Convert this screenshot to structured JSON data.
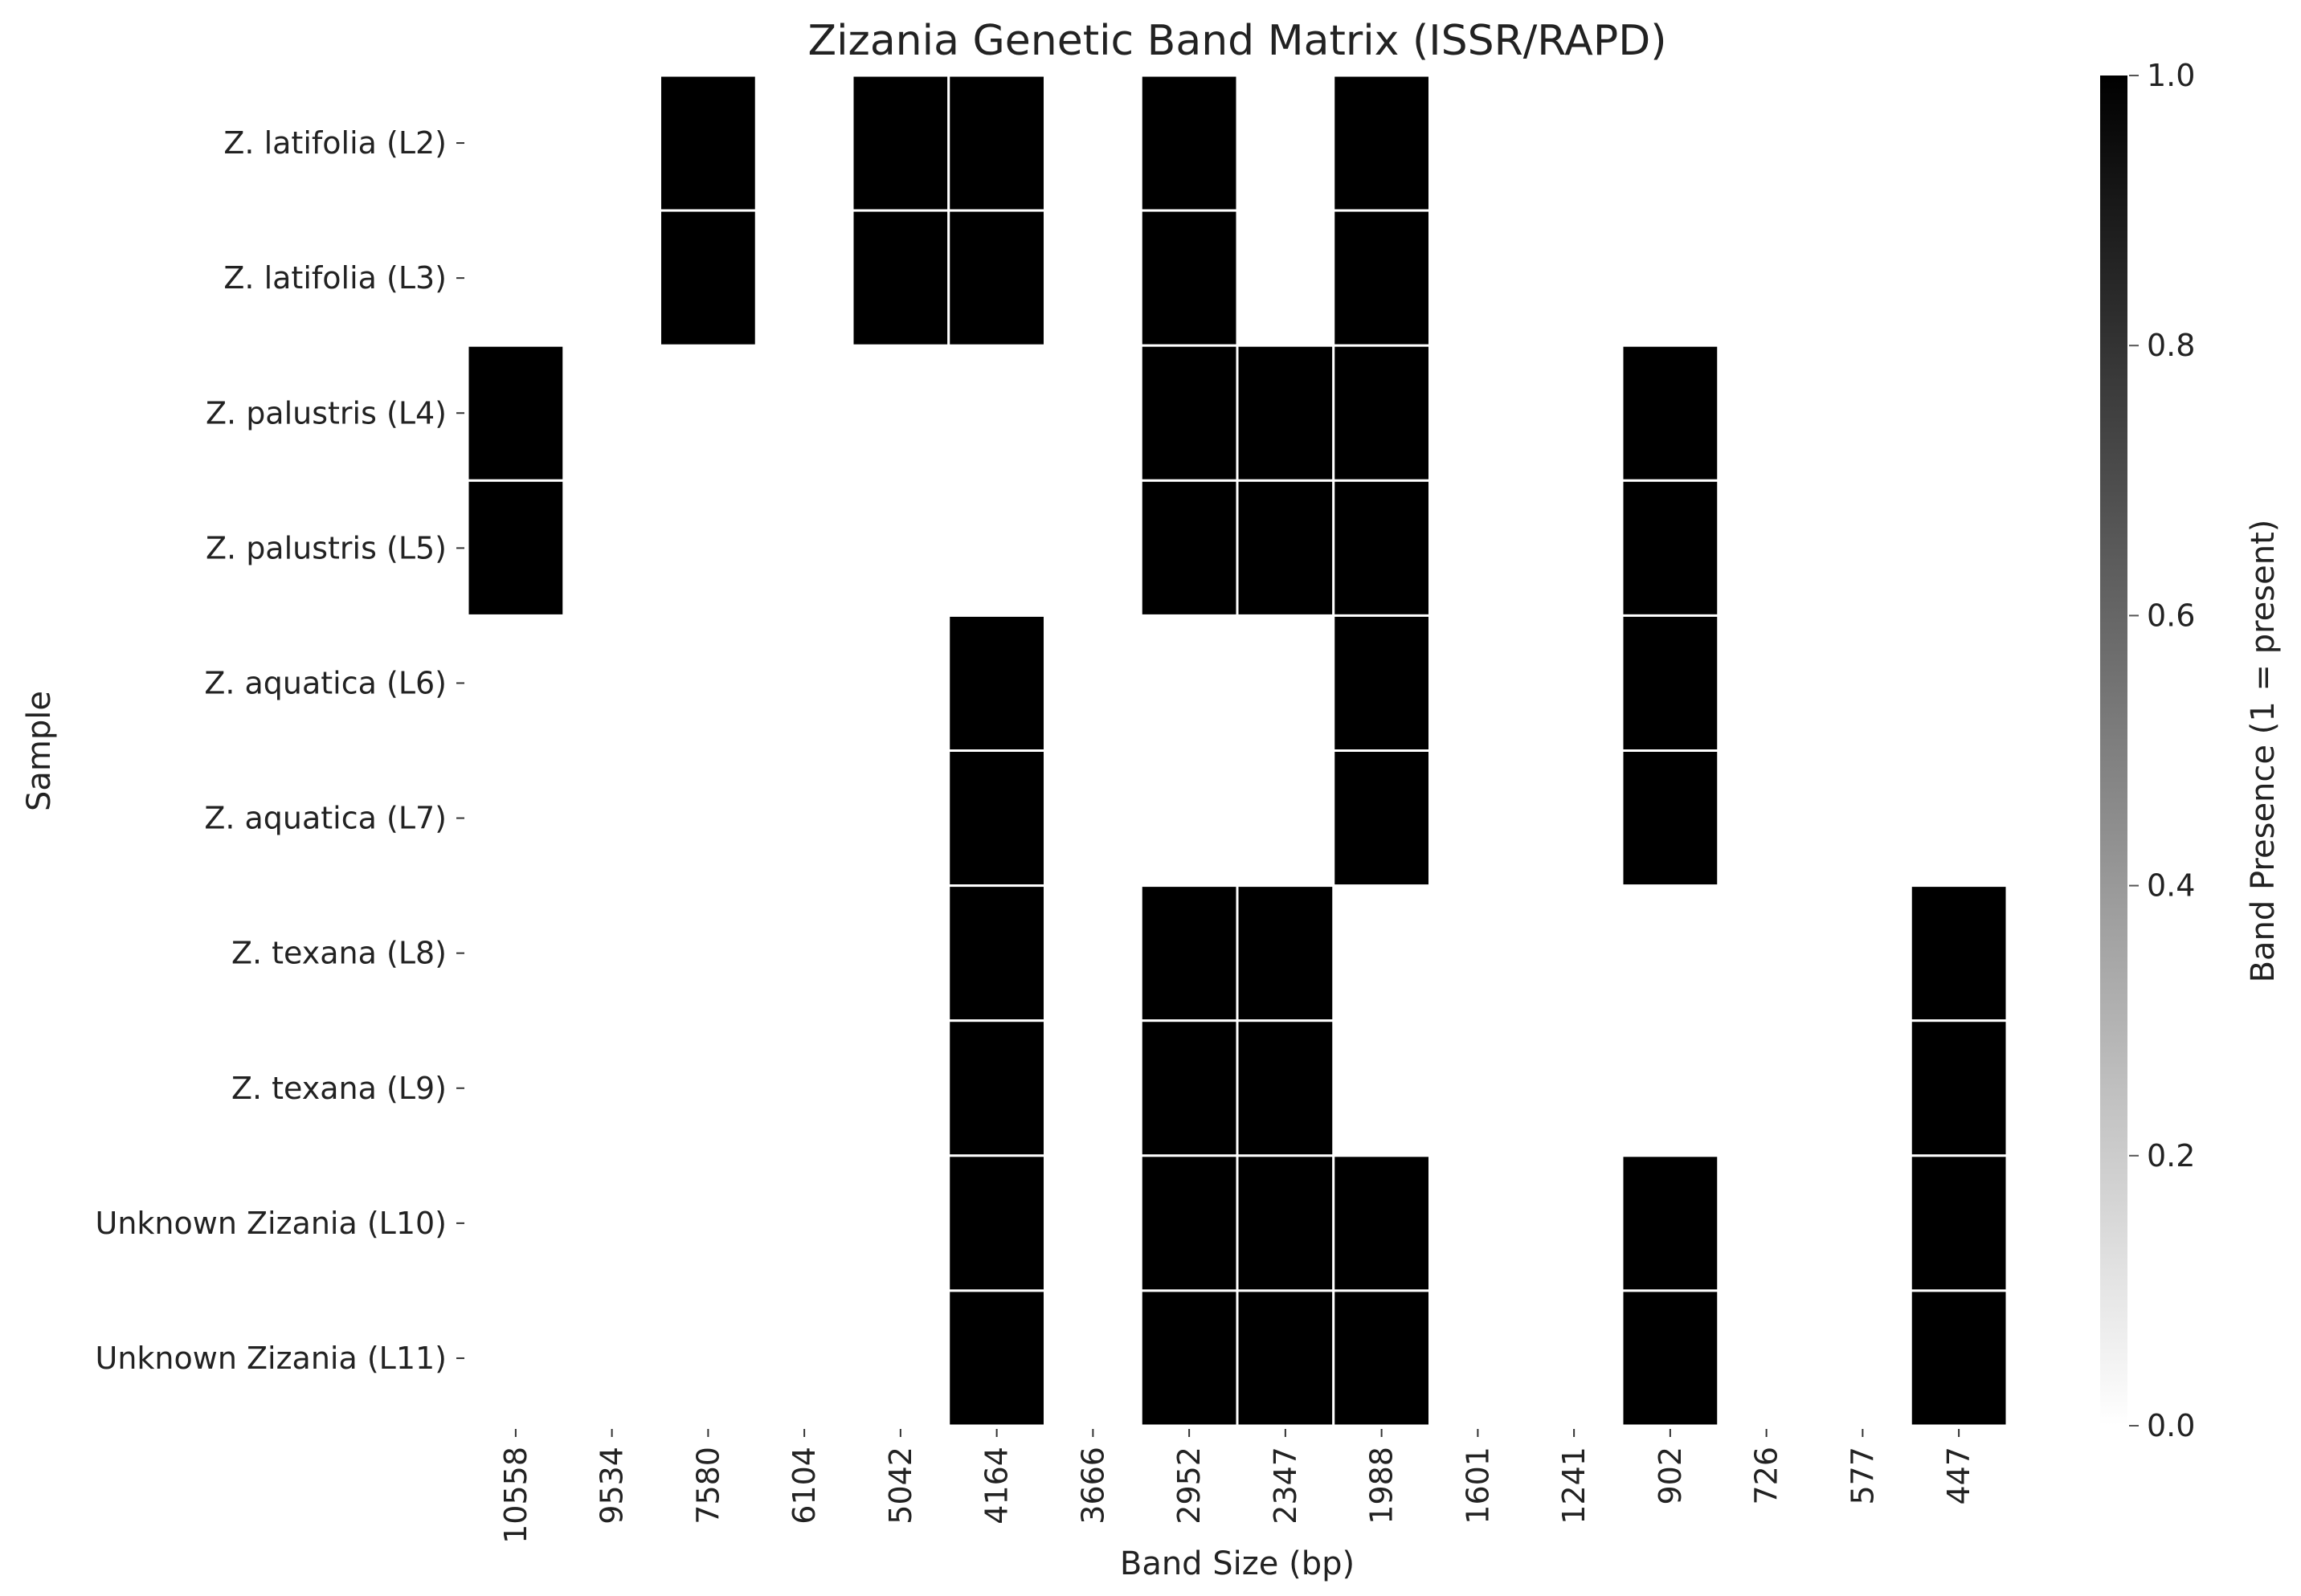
{
  "chart_data": {
    "type": "heatmap",
    "title": "Zizania Genetic Band Matrix (ISSR/RAPD)",
    "xlabel": "Band Size (bp)",
    "ylabel": "Sample",
    "x_categories": [
      "10558",
      "9534",
      "7580",
      "6104",
      "5042",
      "4164",
      "3666",
      "2952",
      "2347",
      "1988",
      "1601",
      "1241",
      "902",
      "726",
      "577",
      "447"
    ],
    "y_categories": [
      "Z. latifolia (L2)",
      "Z. latifolia (L3)",
      "Z. palustris (L4)",
      "Z. palustris (L5)",
      "Z. aquatica (L6)",
      "Z. aquatica (L7)",
      "Z. texana (L8)",
      "Z. texana (L9)",
      "Unknown Zizania (L10)",
      "Unknown Zizania (L11)"
    ],
    "values": [
      [
        0,
        0,
        1,
        0,
        1,
        1,
        0,
        1,
        0,
        1,
        0,
        0,
        0,
        0,
        0,
        0
      ],
      [
        0,
        0,
        1,
        0,
        1,
        1,
        0,
        1,
        0,
        1,
        0,
        0,
        0,
        0,
        0,
        0
      ],
      [
        1,
        0,
        0,
        0,
        0,
        0,
        0,
        1,
        1,
        1,
        0,
        0,
        1,
        0,
        0,
        0
      ],
      [
        1,
        0,
        0,
        0,
        0,
        0,
        0,
        1,
        1,
        1,
        0,
        0,
        1,
        0,
        0,
        0
      ],
      [
        0,
        0,
        0,
        0,
        0,
        1,
        0,
        0,
        0,
        1,
        0,
        0,
        1,
        0,
        0,
        0
      ],
      [
        0,
        0,
        0,
        0,
        0,
        1,
        0,
        0,
        0,
        1,
        0,
        0,
        1,
        0,
        0,
        0
      ],
      [
        0,
        0,
        0,
        0,
        0,
        1,
        0,
        1,
        1,
        0,
        0,
        0,
        0,
        0,
        0,
        1
      ],
      [
        0,
        0,
        0,
        0,
        0,
        1,
        0,
        1,
        1,
        0,
        0,
        0,
        0,
        0,
        0,
        1
      ],
      [
        0,
        0,
        0,
        0,
        0,
        1,
        0,
        1,
        1,
        1,
        0,
        0,
        1,
        0,
        0,
        1
      ],
      [
        0,
        0,
        0,
        0,
        0,
        1,
        0,
        1,
        1,
        1,
        0,
        0,
        1,
        0,
        0,
        1
      ]
    ],
    "vmin": 0,
    "vmax": 1,
    "colormap": {
      "low": "#ffffff",
      "high": "#000000"
    },
    "cell_border_color": "#ffffff",
    "colorbar": {
      "label": "Band Presence (1 = present)",
      "ticks": [
        "0.0",
        "0.2",
        "0.4",
        "0.6",
        "0.8",
        "1.0"
      ],
      "tick_values": [
        0,
        0.2,
        0.4,
        0.6,
        0.8,
        1.0
      ]
    },
    "grid": false
  }
}
